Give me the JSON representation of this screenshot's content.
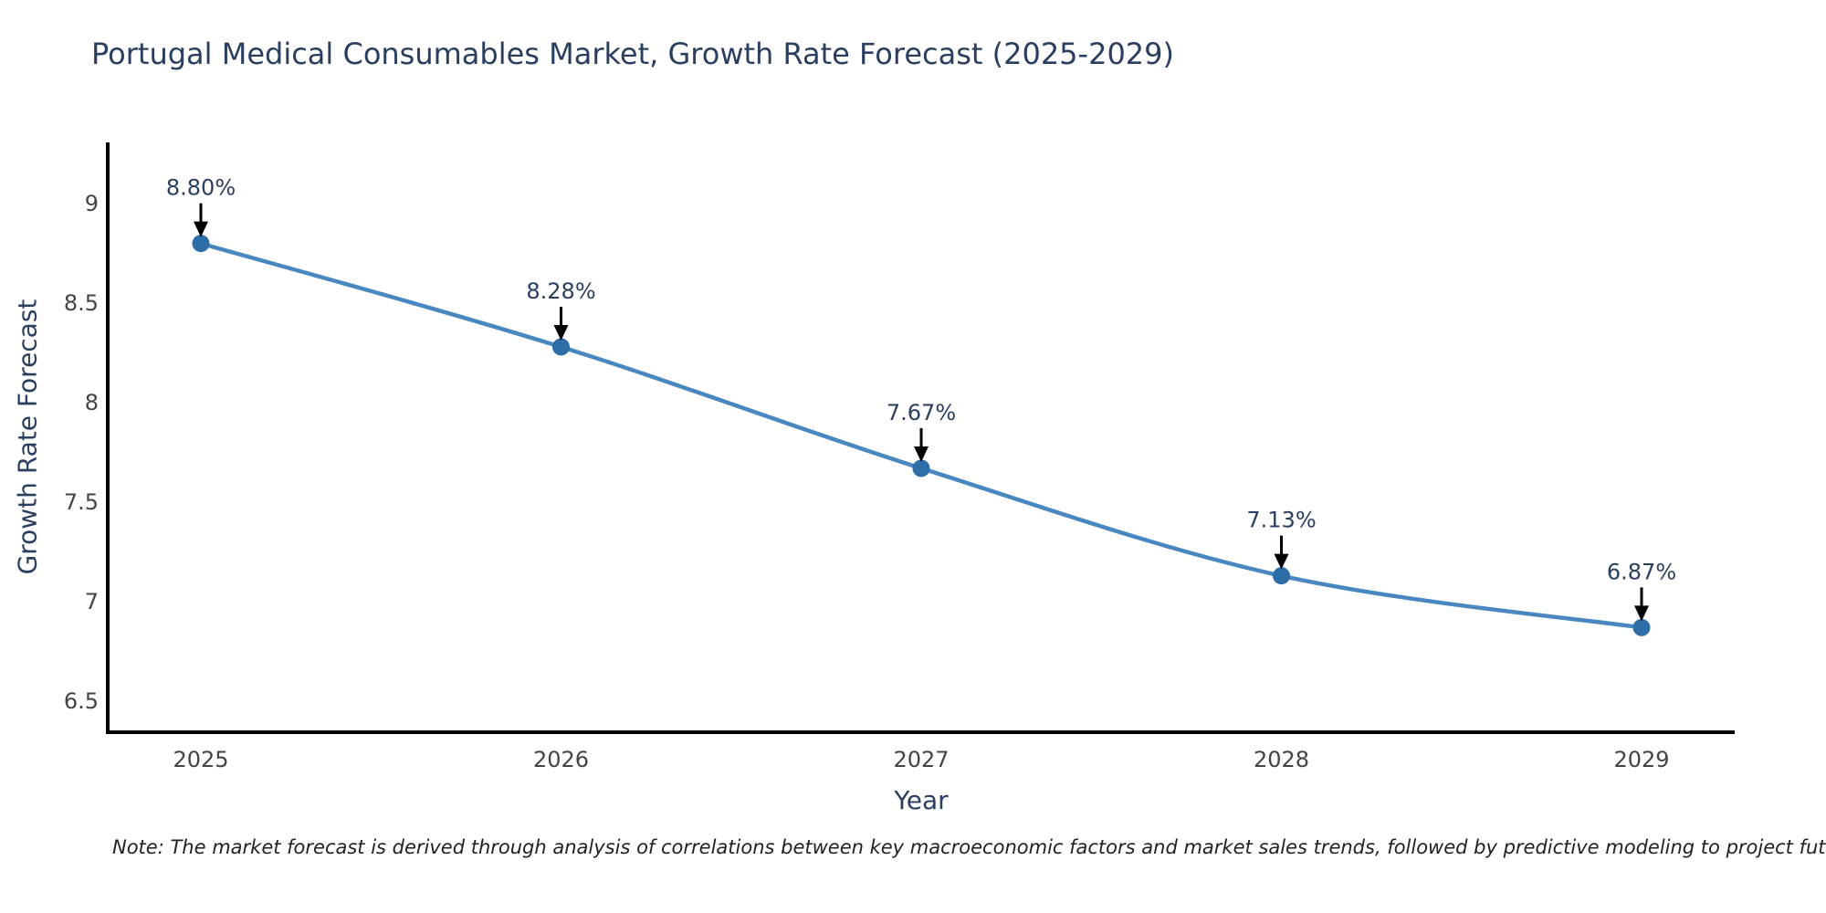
{
  "note": "Note: The market forecast is derived through analysis of correlations between key macroeconomic factors and market sales trends, followed by predictive modeling to project future sales",
  "chart_data": {
    "type": "line",
    "title": "Portugal Medical Consumables Market, Growth Rate Forecast (2025-2029)",
    "xlabel": "Year",
    "ylabel": "Growth Rate Forecast",
    "x": [
      2025,
      2026,
      2027,
      2028,
      2029
    ],
    "series": [
      {
        "name": "Growth Rate Forecast",
        "values": [
          8.8,
          8.28,
          7.67,
          7.13,
          6.87
        ]
      }
    ],
    "point_labels": [
      "8.80%",
      "8.28%",
      "7.67%",
      "7.13%",
      "6.87%"
    ],
    "ytick_labels": [
      "6.5",
      "7",
      "7.5",
      "8",
      "8.5",
      "9"
    ],
    "ytick_values": [
      6.5,
      7,
      7.5,
      8,
      8.5,
      9
    ],
    "ylim": [
      6.35,
      9.31
    ],
    "line_shape": "spline",
    "grid": false,
    "legend_position": "none",
    "colors": {
      "line": "#4887c0",
      "marker": "#2d6da8",
      "arrow": "#000000",
      "axis": "#000000",
      "tick_text": "#444444",
      "heading_text": "#2a3f5f",
      "background": "#ffffff"
    }
  }
}
